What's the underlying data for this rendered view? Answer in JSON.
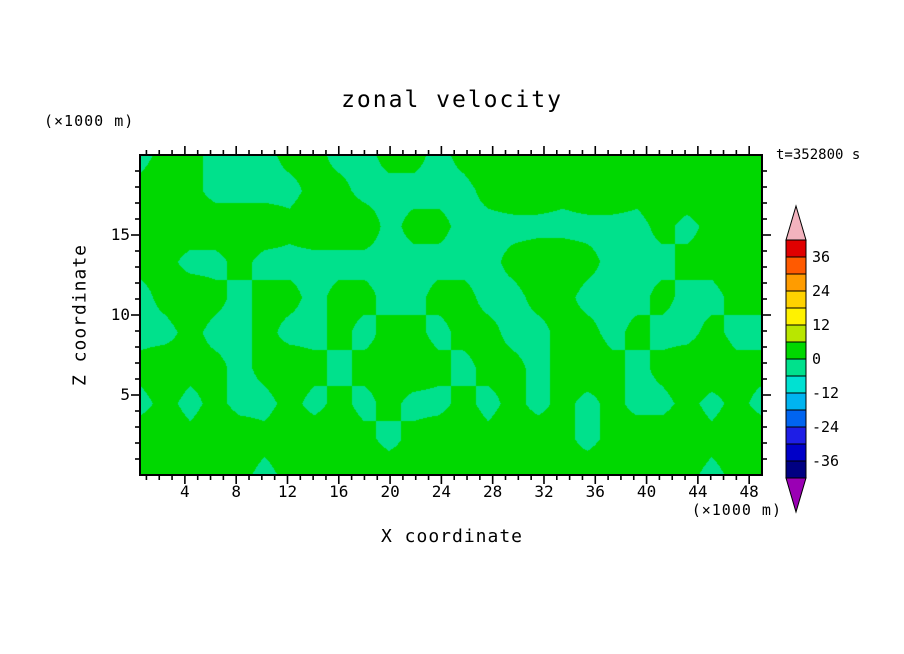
{
  "title": "zonal velocity",
  "timestamp": "t=352800 s",
  "y_units_label": "(×1000 m)",
  "x_units_label": "(×1000 m)",
  "xlabel": "X coordinate",
  "ylabel": "Z coordinate",
  "chart_data": {
    "type": "heatmap",
    "title": "zonal velocity",
    "time_label": "t=352800 s",
    "x_axis": {
      "label": "X coordinate",
      "units": "(×1000 m)",
      "range": [
        0.5,
        49.0
      ],
      "major_ticks": [
        4,
        8,
        12,
        16,
        20,
        24,
        28,
        32,
        36,
        40,
        44,
        48
      ],
      "minor_tick_step": 1
    },
    "z_axis": {
      "label": "Z coordinate",
      "units": "(×1000 m)",
      "range": [
        0,
        20
      ],
      "major_ticks": [
        5,
        10,
        15
      ],
      "minor_tick_step": 1
    },
    "contour_interval": 6,
    "threshold": 0,
    "fill_colors": {
      "positive": "#00d800",
      "negative": "#00e18c"
    },
    "grid_note_rows_top_to_bottom_z": [
      19,
      17,
      15,
      13,
      11,
      9,
      7,
      5,
      3,
      1
    ],
    "grid": [
      [
        -1,
        1,
        1,
        -1,
        -2,
        -1,
        1,
        1,
        -1,
        -1,
        1,
        1,
        -1,
        1,
        2,
        2,
        2,
        2,
        2,
        2,
        2,
        2,
        2,
        2,
        2,
        2
      ],
      [
        1,
        2,
        1,
        -1,
        -1,
        -1,
        -1,
        1,
        1,
        -1,
        -1,
        -1,
        -1,
        -1,
        1,
        2,
        2,
        1,
        2,
        2,
        1,
        2,
        2,
        2,
        1,
        1
      ],
      [
        2,
        2,
        2,
        2,
        2,
        2,
        1,
        2,
        2,
        2,
        -1,
        1,
        1,
        -1,
        -1,
        -1,
        -1,
        -1,
        -1,
        -1,
        -1,
        1,
        -1,
        1,
        2,
        2
      ],
      [
        1,
        1,
        -1,
        -1,
        1,
        -1,
        -1,
        -1,
        -1,
        -1,
        -1,
        -1,
        -1,
        -1,
        -1,
        1,
        2,
        2,
        1,
        -1,
        -1,
        -1,
        1,
        1,
        2,
        2
      ],
      [
        -1,
        1,
        2,
        1,
        -1,
        1,
        1,
        -1,
        1,
        1,
        -1,
        -1,
        1,
        1,
        -1,
        -1,
        1,
        1,
        -1,
        -1,
        -1,
        1,
        -1,
        -1,
        1,
        1
      ],
      [
        -1,
        -1,
        1,
        -1,
        -1,
        1,
        -1,
        -1,
        1,
        -1,
        1,
        1,
        -1,
        1,
        1,
        -1,
        -1,
        1,
        1,
        -1,
        1,
        -1,
        -1,
        1,
        -1,
        -1
      ],
      [
        1,
        2,
        1,
        1,
        -1,
        1,
        2,
        1,
        -1,
        1,
        1,
        2,
        1,
        -1,
        1,
        1,
        -1,
        1,
        2,
        1,
        -1,
        1,
        2,
        2,
        1,
        1
      ],
      [
        -1,
        1,
        -1,
        1,
        -1,
        -1,
        1,
        -1,
        1,
        -1,
        1,
        -1,
        -1,
        1,
        -1,
        1,
        -1,
        1,
        -1,
        1,
        -1,
        -1,
        1,
        -1,
        1,
        -1
      ],
      [
        2,
        2,
        1,
        2,
        2,
        1,
        2,
        2,
        2,
        1,
        -1,
        1,
        2,
        2,
        1,
        2,
        2,
        1,
        -1,
        1,
        2,
        2,
        2,
        1,
        2,
        2
      ],
      [
        1,
        2,
        2,
        2,
        1,
        -1,
        1,
        2,
        2,
        2,
        2,
        1,
        1,
        2,
        2,
        2,
        1,
        1,
        2,
        2,
        2,
        2,
        1,
        -1,
        1,
        2
      ]
    ]
  },
  "colorbar": {
    "labels": [
      "36",
      "24",
      "12",
      "0",
      "-12",
      "-24",
      "-36"
    ],
    "top_arrow_color": "#f3b3be",
    "bottom_arrow_color": "#9a00b4",
    "segments_top_to_bottom": [
      {
        "from": 42,
        "to": 36,
        "color": "#e00000"
      },
      {
        "from": 36,
        "to": 30,
        "color": "#ff5a00"
      },
      {
        "from": 30,
        "to": 24,
        "color": "#ff9c00"
      },
      {
        "from": 24,
        "to": 18,
        "color": "#ffd200"
      },
      {
        "from": 18,
        "to": 12,
        "color": "#fff200"
      },
      {
        "from": 12,
        "to": 6,
        "color": "#b9e600"
      },
      {
        "from": 6,
        "to": 0,
        "color": "#00d800"
      },
      {
        "from": 0,
        "to": -6,
        "color": "#00e18c"
      },
      {
        "from": -6,
        "to": -12,
        "color": "#00e1d2"
      },
      {
        "from": -12,
        "to": -18,
        "color": "#00b4f0"
      },
      {
        "from": -18,
        "to": -24,
        "color": "#0064f0"
      },
      {
        "from": -24,
        "to": -30,
        "color": "#1e1ee6"
      },
      {
        "from": -30,
        "to": -36,
        "color": "#0000c8"
      },
      {
        "from": -36,
        "to": -42,
        "color": "#000082"
      }
    ]
  }
}
